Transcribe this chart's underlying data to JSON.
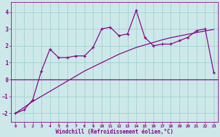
{
  "xlabel": "Windchill (Refroidissement éolien,°C)",
  "bg_color": "#cce8e8",
  "line_color": "#880088",
  "grid_color": "#99cccc",
  "x_data": [
    0,
    1,
    2,
    3,
    4,
    5,
    6,
    7,
    8,
    9,
    10,
    11,
    12,
    13,
    14,
    15,
    16,
    17,
    18,
    19,
    20,
    21,
    22,
    23
  ],
  "y_jagged": [
    -2.0,
    -1.8,
    -1.2,
    0.5,
    1.8,
    1.3,
    1.3,
    1.4,
    1.4,
    1.9,
    3.0,
    3.1,
    2.6,
    2.7,
    4.1,
    2.5,
    2.0,
    2.1,
    2.1,
    2.3,
    2.5,
    2.9,
    3.0,
    0.4
  ],
  "y_linear": [
    -2.0,
    -1.65,
    -1.3,
    -1.0,
    -0.7,
    -0.4,
    -0.1,
    0.2,
    0.5,
    0.75,
    1.0,
    1.25,
    1.5,
    1.7,
    1.9,
    2.05,
    2.2,
    2.35,
    2.48,
    2.58,
    2.68,
    2.78,
    2.88,
    2.97
  ],
  "y_hline": 0.0,
  "xlim": [
    -0.5,
    23.5
  ],
  "ylim": [
    -2.5,
    4.6
  ],
  "yticks": [
    -2,
    -1,
    0,
    1,
    2,
    3,
    4
  ],
  "xtick_labels": [
    "0",
    "1",
    "2",
    "3",
    "4",
    "5",
    "6",
    "7",
    "8",
    "9",
    "10",
    "11",
    "12",
    "13",
    "14",
    "15",
    "16",
    "17",
    "18",
    "19",
    "20",
    "21",
    "22",
    "23"
  ]
}
